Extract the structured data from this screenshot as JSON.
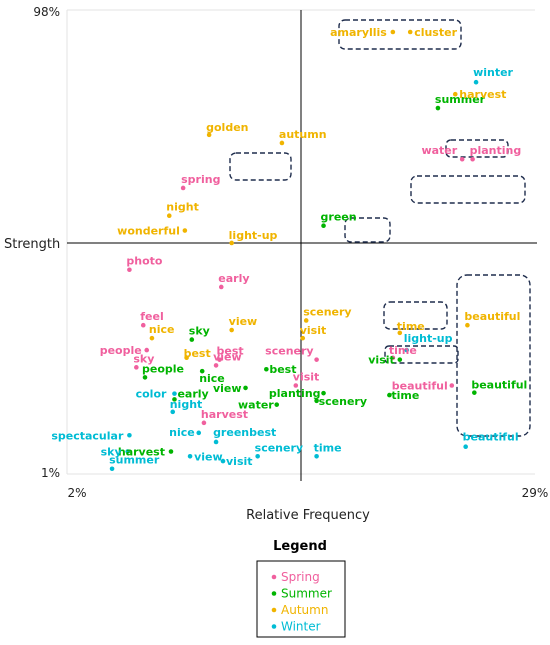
{
  "colors": {
    "Spring": "#f0609e",
    "Summer": "#00b400",
    "Autumn": "#f0b400",
    "Winter": "#00bcd4",
    "axis": "#000000",
    "box": "#1f2d4d"
  },
  "chart_data": {
    "type": "scatter",
    "xlabel": "Relative Frequency",
    "ylabel": "Strength",
    "xlim": [
      2,
      29
    ],
    "ylim": [
      1,
      98
    ],
    "x_tick_labels": [
      "2%",
      "29%"
    ],
    "y_tick_labels": [
      "98%",
      "1%"
    ],
    "grid": false,
    "legend": {
      "title": "Legend",
      "placement": "bottom-center",
      "entries": [
        "Spring",
        "Summer",
        "Autumn",
        "Winter"
      ]
    },
    "series": [
      {
        "name": "Spring",
        "points": [
          {
            "label": "planting",
            "x": 25.4,
            "y": 66.8
          },
          {
            "label": "water",
            "x": 24.8,
            "y": 66.8
          },
          {
            "label": "spring",
            "x": 8.7,
            "y": 60.8
          },
          {
            "label": "photo",
            "x": 5.6,
            "y": 43.7
          },
          {
            "label": "early",
            "x": 10.9,
            "y": 40.1
          },
          {
            "label": "feel",
            "x": 6.4,
            "y": 32.1
          },
          {
            "label": "people",
            "x": 6.6,
            "y": 26.9
          },
          {
            "label": "sky",
            "x": 6.0,
            "y": 23.3
          },
          {
            "label": "best",
            "x": 10.8,
            "y": 24.9
          },
          {
            "label": "view",
            "x": 10.6,
            "y": 23.7
          },
          {
            "label": "scenery",
            "x": 16.4,
            "y": 24.9
          },
          {
            "label": "visit",
            "x": 15.2,
            "y": 19.5
          },
          {
            "label": "time",
            "x": 20.8,
            "y": 25.3
          },
          {
            "label": "beautiful",
            "x": 24.2,
            "y": 19.5
          },
          {
            "label": "harvest",
            "x": 9.9,
            "y": 11.7
          }
        ]
      },
      {
        "name": "Summer",
        "points": [
          {
            "label": "summer",
            "x": 23.4,
            "y": 77.5
          },
          {
            "label": "green",
            "x": 16.8,
            "y": 52.9
          },
          {
            "label": "sky",
            "x": 9.2,
            "y": 29.1
          },
          {
            "label": "people",
            "x": 6.5,
            "y": 21.2
          },
          {
            "label": "nice",
            "x": 9.8,
            "y": 22.5
          },
          {
            "label": "best",
            "x": 13.5,
            "y": 22.9
          },
          {
            "label": "view",
            "x": 12.3,
            "y": 19.0
          },
          {
            "label": "visit",
            "x": 21.2,
            "y": 24.9
          },
          {
            "label": "planting",
            "x": 16.8,
            "y": 17.9
          },
          {
            "label": "scenery",
            "x": 16.4,
            "y": 16.3
          },
          {
            "label": "water",
            "x": 14.1,
            "y": 15.5
          },
          {
            "label": "early",
            "x": 8.2,
            "y": 16.6
          },
          {
            "label": "time",
            "x": 20.6,
            "y": 17.5
          },
          {
            "label": "beautiful",
            "x": 25.5,
            "y": 18.0
          },
          {
            "label": "harvest",
            "x": 8.0,
            "y": 5.7
          }
        ]
      },
      {
        "name": "Autumn",
        "points": [
          {
            "label": "amaryllis",
            "x": 20.8,
            "y": 93.4
          },
          {
            "label": "cluster",
            "x": 21.8,
            "y": 93.4
          },
          {
            "label": "harvest",
            "x": 24.4,
            "y": 80.4
          },
          {
            "label": "golden",
            "x": 10.2,
            "y": 71.9
          },
          {
            "label": "autumn",
            "x": 14.4,
            "y": 70.2
          },
          {
            "label": "night",
            "x": 7.9,
            "y": 55.0
          },
          {
            "label": "wonderful",
            "x": 8.8,
            "y": 51.9
          },
          {
            "label": "light-up",
            "x": 11.5,
            "y": 49.3
          },
          {
            "label": "nice",
            "x": 6.9,
            "y": 29.4
          },
          {
            "label": "view",
            "x": 11.5,
            "y": 31.1
          },
          {
            "label": "scenery",
            "x": 15.8,
            "y": 33.1
          },
          {
            "label": "visit",
            "x": 15.6,
            "y": 29.4
          },
          {
            "label": "best",
            "x": 8.9,
            "y": 25.3
          },
          {
            "label": "time",
            "x": 21.2,
            "y": 30.5
          },
          {
            "label": "beautiful",
            "x": 25.1,
            "y": 32.1
          }
        ]
      },
      {
        "name": "Winter",
        "points": [
          {
            "label": "winter",
            "x": 25.6,
            "y": 82.9
          },
          {
            "label": "light-up",
            "x": 21.6,
            "y": 26.9
          },
          {
            "label": "color",
            "x": 8.2,
            "y": 17.8
          },
          {
            "label": "night",
            "x": 8.1,
            "y": 14.0
          },
          {
            "label": "spectacular",
            "x": 5.6,
            "y": 9.1
          },
          {
            "label": "nice",
            "x": 9.6,
            "y": 9.6
          },
          {
            "label": "greenbest",
            "x": 10.6,
            "y": 7.7
          },
          {
            "label": "view",
            "x": 9.1,
            "y": 4.7
          },
          {
            "label": "sky",
            "x": 5.5,
            "y": 5.7
          },
          {
            "label": "summer",
            "x": 4.6,
            "y": 2.1
          },
          {
            "label": "visit",
            "x": 11.0,
            "y": 3.7
          },
          {
            "label": "scenery",
            "x": 13.0,
            "y": 4.7
          },
          {
            "label": "time",
            "x": 16.4,
            "y": 4.7
          },
          {
            "label": "beautiful",
            "x": 25.0,
            "y": 6.7
          }
        ]
      }
    ]
  }
}
